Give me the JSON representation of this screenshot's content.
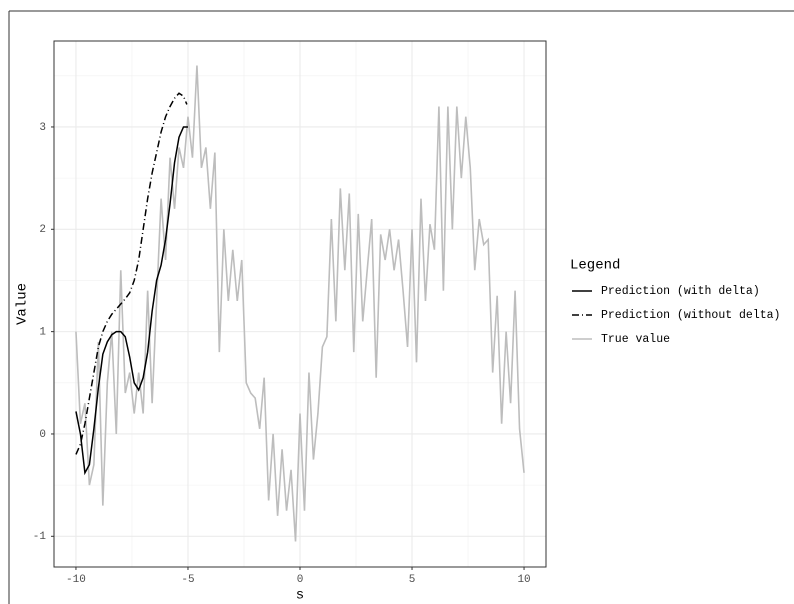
{
  "chart_data": {
    "type": "line",
    "x_label": "s",
    "y_label": "Value",
    "legend_title": "Legend",
    "legend_position": "right",
    "xlim": [
      -10.98,
      10.98
    ],
    "ylim": [
      -1.3,
      3.84
    ],
    "xticks": [
      -10,
      -5,
      0,
      5,
      10
    ],
    "yticks": [
      -1,
      0,
      1,
      2,
      3
    ],
    "x_minor_ticks": [
      -7.5,
      -2.5,
      2.5,
      7.5
    ],
    "y_minor_ticks": [
      -0.5,
      0.5,
      1.5,
      2.5,
      3.5
    ],
    "grid": true,
    "series": [
      {
        "name": "Prediction (with delta)",
        "color": "#000000",
        "linetype": "solid",
        "x": [
          -10,
          -9.8,
          -9.6,
          -9.4,
          -9.2,
          -9,
          -8.8,
          -8.6,
          -8.4,
          -8.2,
          -8,
          -7.8,
          -7.6,
          -7.4,
          -7.2,
          -7,
          -6.8,
          -6.6,
          -6.4,
          -6.2,
          -6,
          -5.8,
          -5.6,
          -5.4,
          -5.2,
          -5
        ],
        "values": [
          0.22,
          0.0,
          -0.38,
          -0.3,
          0.05,
          0.45,
          0.78,
          0.9,
          0.97,
          1.0,
          1.0,
          0.95,
          0.75,
          0.5,
          0.43,
          0.55,
          0.8,
          1.2,
          1.5,
          1.65,
          1.9,
          2.25,
          2.65,
          2.9,
          3.0,
          3.0
        ]
      },
      {
        "name": "Prediction (without delta)",
        "color": "#000000",
        "linetype": "dotdash",
        "x": [
          -10,
          -9.8,
          -9.6,
          -9.4,
          -9.2,
          -9,
          -8.8,
          -8.6,
          -8.4,
          -8.2,
          -8,
          -7.8,
          -7.6,
          -7.4,
          -7.2,
          -7,
          -6.8,
          -6.6,
          -6.4,
          -6.2,
          -6,
          -5.8,
          -5.6,
          -5.4,
          -5.2,
          -5.05
        ],
        "values": [
          -0.2,
          -0.1,
          0.1,
          0.35,
          0.6,
          0.85,
          1.0,
          1.1,
          1.17,
          1.22,
          1.27,
          1.32,
          1.38,
          1.5,
          1.7,
          2.0,
          2.3,
          2.55,
          2.75,
          2.95,
          3.1,
          3.2,
          3.28,
          3.33,
          3.3,
          3.22
        ]
      },
      {
        "name": "True value",
        "color": "#bdbdbd",
        "linetype": "solid",
        "x": [
          -10,
          -9.8,
          -9.6,
          -9.4,
          -9.2,
          -9,
          -8.8,
          -8.6,
          -8.4,
          -8.2,
          -8,
          -7.8,
          -7.6,
          -7.4,
          -7.2,
          -7,
          -6.8,
          -6.6,
          -6.4,
          -6.2,
          -6,
          -5.8,
          -5.6,
          -5.4,
          -5.2,
          -5,
          -4.8,
          -4.6,
          -4.4,
          -4.2,
          -4,
          -3.8,
          -3.6,
          -3.4,
          -3.2,
          -3,
          -2.8,
          -2.6,
          -2.4,
          -2.2,
          -2,
          -1.8,
          -1.6,
          -1.4,
          -1.2,
          -1,
          -0.8,
          -0.6,
          -0.4,
          -0.2,
          0,
          0.2,
          0.4,
          0.6,
          0.8,
          1,
          1.2,
          1.4,
          1.6,
          1.8,
          2,
          2.2,
          2.4,
          2.6,
          2.8,
          3,
          3.2,
          3.4,
          3.6,
          3.8,
          4,
          4.2,
          4.4,
          4.6,
          4.8,
          5,
          5.2,
          5.4,
          5.6,
          5.8,
          6,
          6.2,
          6.4,
          6.6,
          6.8,
          7,
          7.2,
          7.4,
          7.6,
          7.8,
          8,
          8.2,
          8.4,
          8.6,
          8.8,
          9,
          9.2,
          9.4,
          9.6,
          9.8,
          10
        ],
        "values": [
          1.0,
          0.1,
          0.3,
          -0.5,
          -0.3,
          0.9,
          -0.7,
          0.5,
          1.0,
          0.0,
          1.6,
          0.4,
          0.6,
          0.2,
          0.6,
          0.2,
          1.4,
          0.3,
          1.3,
          2.3,
          1.7,
          2.7,
          2.2,
          2.8,
          2.6,
          3.1,
          2.7,
          3.6,
          2.6,
          2.8,
          2.2,
          2.75,
          0.8,
          2.0,
          1.3,
          1.8,
          1.3,
          1.7,
          0.5,
          0.4,
          0.35,
          0.05,
          0.55,
          -0.65,
          0.0,
          -0.8,
          -0.15,
          -0.75,
          -0.35,
          -1.05,
          0.2,
          -0.75,
          0.6,
          -0.25,
          0.2,
          0.85,
          0.95,
          2.1,
          1.1,
          2.4,
          1.6,
          2.35,
          0.8,
          2.15,
          1.1,
          1.6,
          2.1,
          0.55,
          1.95,
          1.7,
          2.0,
          1.6,
          1.9,
          1.4,
          0.85,
          2.0,
          0.7,
          2.3,
          1.3,
          2.05,
          1.8,
          3.2,
          1.4,
          3.2,
          2.0,
          3.2,
          2.5,
          3.1,
          2.6,
          1.6,
          2.1,
          1.85,
          1.9,
          0.6,
          1.35,
          0.1,
          1.0,
          0.3,
          1.4,
          0.05,
          -0.38
        ]
      }
    ]
  }
}
